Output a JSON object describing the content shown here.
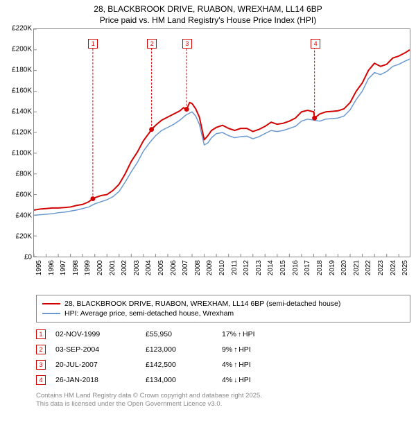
{
  "title": {
    "line1": "28, BLACKBROOK DRIVE, RUABON, WREXHAM, LL14 6BP",
    "line2": "Price paid vs. HM Land Registry's House Price Index (HPI)"
  },
  "chart": {
    "type": "line",
    "background_color": "#ffffff",
    "border_color": "#888888",
    "grid": false,
    "ylim": [
      0,
      220000
    ],
    "ytick_step": 20000,
    "yticks": [
      "£0",
      "£20K",
      "£40K",
      "£60K",
      "£80K",
      "£100K",
      "£120K",
      "£140K",
      "£160K",
      "£180K",
      "£200K",
      "£220K"
    ],
    "xlim": [
      1995,
      2025.9
    ],
    "xticks": [
      "1995",
      "1996",
      "1997",
      "1998",
      "1999",
      "2000",
      "2001",
      "2002",
      "2003",
      "2004",
      "2005",
      "2006",
      "2007",
      "2008",
      "2009",
      "2010",
      "2011",
      "2012",
      "2013",
      "2014",
      "2015",
      "2016",
      "2017",
      "2018",
      "2019",
      "2020",
      "2021",
      "2022",
      "2023",
      "2024",
      "2025"
    ],
    "series": [
      {
        "name": "price_paid",
        "label": "28, BLACKBROOK DRIVE, RUABON, WREXHAM, LL14 6BP (semi-detached house)",
        "color": "#d40000",
        "line_width": 2,
        "data": [
          [
            1995.0,
            45000
          ],
          [
            1995.5,
            46000
          ],
          [
            1996.0,
            46500
          ],
          [
            1996.5,
            47000
          ],
          [
            1997.0,
            47000
          ],
          [
            1997.5,
            47500
          ],
          [
            1998.0,
            48000
          ],
          [
            1998.5,
            49500
          ],
          [
            1999.0,
            50500
          ],
          [
            1999.5,
            53000
          ],
          [
            1999.84,
            55950
          ],
          [
            2000.0,
            57000
          ],
          [
            2000.5,
            59000
          ],
          [
            2001.0,
            60000
          ],
          [
            2001.5,
            64000
          ],
          [
            2002.0,
            70000
          ],
          [
            2002.5,
            80000
          ],
          [
            2003.0,
            92000
          ],
          [
            2003.5,
            101000
          ],
          [
            2004.0,
            112000
          ],
          [
            2004.5,
            120000
          ],
          [
            2004.67,
            123000
          ],
          [
            2005.0,
            127000
          ],
          [
            2005.5,
            132000
          ],
          [
            2006.0,
            135000
          ],
          [
            2006.5,
            138000
          ],
          [
            2007.0,
            141000
          ],
          [
            2007.3,
            144000
          ],
          [
            2007.55,
            142500
          ],
          [
            2007.8,
            149000
          ],
          [
            2008.0,
            148000
          ],
          [
            2008.3,
            143000
          ],
          [
            2008.6,
            135000
          ],
          [
            2009.0,
            113000
          ],
          [
            2009.3,
            117000
          ],
          [
            2009.6,
            122000
          ],
          [
            2010.0,
            125000
          ],
          [
            2010.5,
            127000
          ],
          [
            2011.0,
            124000
          ],
          [
            2011.5,
            122000
          ],
          [
            2012.0,
            124000
          ],
          [
            2012.5,
            124000
          ],
          [
            2013.0,
            121000
          ],
          [
            2013.5,
            123000
          ],
          [
            2014.0,
            126000
          ],
          [
            2014.5,
            130000
          ],
          [
            2015.0,
            128000
          ],
          [
            2015.5,
            129000
          ],
          [
            2016.0,
            131000
          ],
          [
            2016.5,
            134000
          ],
          [
            2017.0,
            140000
          ],
          [
            2017.5,
            141500
          ],
          [
            2018.0,
            140000
          ],
          [
            2018.07,
            134000
          ],
          [
            2018.5,
            138000
          ],
          [
            2019.0,
            140000
          ],
          [
            2019.5,
            140500
          ],
          [
            2020.0,
            141000
          ],
          [
            2020.5,
            143000
          ],
          [
            2021.0,
            149000
          ],
          [
            2021.5,
            160000
          ],
          [
            2022.0,
            168000
          ],
          [
            2022.5,
            180000
          ],
          [
            2023.0,
            187000
          ],
          [
            2023.5,
            184000
          ],
          [
            2024.0,
            186000
          ],
          [
            2024.5,
            192000
          ],
          [
            2025.0,
            194000
          ],
          [
            2025.5,
            197000
          ],
          [
            2025.9,
            200000
          ]
        ]
      },
      {
        "name": "hpi",
        "label": "HPI: Average price, semi-detached house, Wrexham",
        "color": "#6a99d0",
        "line_width": 1.5,
        "data": [
          [
            1995.0,
            40000
          ],
          [
            1995.5,
            40500
          ],
          [
            1996.0,
            41000
          ],
          [
            1996.5,
            41500
          ],
          [
            1997.0,
            42500
          ],
          [
            1997.5,
            43000
          ],
          [
            1998.0,
            44000
          ],
          [
            1998.5,
            45000
          ],
          [
            1999.0,
            46500
          ],
          [
            1999.5,
            48000
          ],
          [
            2000.0,
            51000
          ],
          [
            2000.5,
            53000
          ],
          [
            2001.0,
            55000
          ],
          [
            2001.5,
            58000
          ],
          [
            2002.0,
            63000
          ],
          [
            2002.5,
            72000
          ],
          [
            2003.0,
            82000
          ],
          [
            2003.5,
            91000
          ],
          [
            2004.0,
            102000
          ],
          [
            2004.5,
            110000
          ],
          [
            2005.0,
            117000
          ],
          [
            2005.5,
            122000
          ],
          [
            2006.0,
            125000
          ],
          [
            2006.5,
            128000
          ],
          [
            2007.0,
            132000
          ],
          [
            2007.5,
            137000
          ],
          [
            2008.0,
            140000
          ],
          [
            2008.3,
            136000
          ],
          [
            2008.6,
            128000
          ],
          [
            2009.0,
            108000
          ],
          [
            2009.3,
            110000
          ],
          [
            2009.6,
            115000
          ],
          [
            2010.0,
            119000
          ],
          [
            2010.5,
            120000
          ],
          [
            2011.0,
            117000
          ],
          [
            2011.5,
            115000
          ],
          [
            2012.0,
            116000
          ],
          [
            2012.5,
            116500
          ],
          [
            2013.0,
            114000
          ],
          [
            2013.5,
            116000
          ],
          [
            2014.0,
            119000
          ],
          [
            2014.5,
            122000
          ],
          [
            2015.0,
            121000
          ],
          [
            2015.5,
            122000
          ],
          [
            2016.0,
            124000
          ],
          [
            2016.5,
            126000
          ],
          [
            2017.0,
            131000
          ],
          [
            2017.5,
            133000
          ],
          [
            2018.0,
            132000
          ],
          [
            2018.5,
            131000
          ],
          [
            2019.0,
            133000
          ],
          [
            2019.5,
            133500
          ],
          [
            2020.0,
            134000
          ],
          [
            2020.5,
            136000
          ],
          [
            2021.0,
            142000
          ],
          [
            2021.5,
            152000
          ],
          [
            2022.0,
            160000
          ],
          [
            2022.5,
            172000
          ],
          [
            2023.0,
            178000
          ],
          [
            2023.5,
            176000
          ],
          [
            2024.0,
            179000
          ],
          [
            2024.5,
            184000
          ],
          [
            2025.0,
            186000
          ],
          [
            2025.5,
            189000
          ],
          [
            2025.9,
            191000
          ]
        ]
      }
    ],
    "markers": [
      {
        "n": "1",
        "x": 1999.84,
        "y": 55950,
        "color": "#d40000",
        "box_top": 14
      },
      {
        "n": "2",
        "x": 2004.67,
        "y": 123000,
        "color": "#d40000",
        "box_top": 14
      },
      {
        "n": "3",
        "x": 2007.55,
        "y": 142500,
        "color": "#d40000",
        "box_top": 14
      },
      {
        "n": "4",
        "x": 2018.07,
        "y": 134000,
        "color": "#d40000",
        "box_top": 14
      }
    ],
    "marker_dot_radius": 3.5
  },
  "transactions": [
    {
      "n": "1",
      "date": "02-NOV-1999",
      "price": "£55,950",
      "delta": "17%",
      "dir": "up",
      "suffix": "HPI",
      "color": "#d40000"
    },
    {
      "n": "2",
      "date": "03-SEP-2004",
      "price": "£123,000",
      "delta": "9%",
      "dir": "up",
      "suffix": "HPI",
      "color": "#d40000"
    },
    {
      "n": "3",
      "date": "20-JUL-2007",
      "price": "£142,500",
      "delta": "4%",
      "dir": "up",
      "suffix": "HPI",
      "color": "#d40000"
    },
    {
      "n": "4",
      "date": "26-JAN-2018",
      "price": "£134,000",
      "delta": "4%",
      "dir": "down",
      "suffix": "HPI",
      "color": "#d40000"
    }
  ],
  "footer": {
    "line1": "Contains HM Land Registry data © Crown copyright and database right 2025.",
    "line2": "This data is licensed under the Open Government Licence v3.0."
  },
  "typography": {
    "title_fontsize": 12,
    "axis_fontsize": 10,
    "legend_fontsize": 10.5,
    "footer_fontsize": 9.5,
    "footer_color": "#888888"
  }
}
